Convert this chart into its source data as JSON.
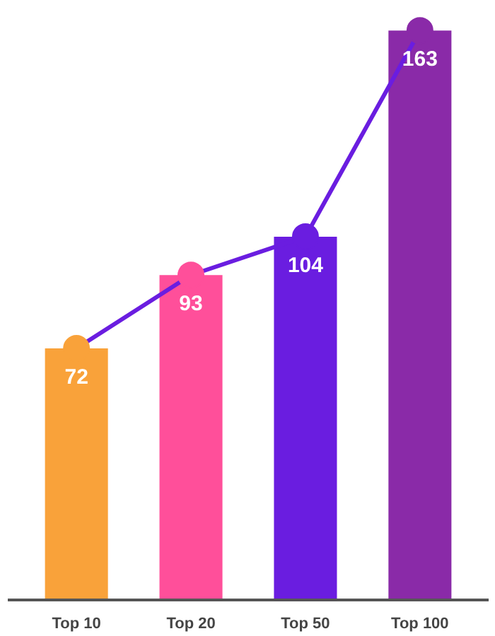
{
  "chart_data": {
    "type": "bar",
    "categories": [
      "Top 10",
      "Top 20",
      "Top 50",
      "Top 100"
    ],
    "tick_labels": "x",
    "series": [
      {
        "colors": [
          "#f9a23a",
          "#ff4f9a",
          "#6a1de0",
          "#8a2aa8"
        ],
        "values": [
          72,
          93,
          104,
          163
        ],
        "value_labels": [
          "72",
          "93",
          "104",
          "163"
        ]
      },
      {
        "type": "line",
        "color": "#6a1de0",
        "colors": [
          "#f9a23a",
          "#ff4f9a",
          "#6a1de0",
          "#8a2aa8"
        ],
        "marker": "circle",
        "line_style": "solid",
        "values": [
          72,
          93,
          104,
          163
        ]
      }
    ]
  }
}
